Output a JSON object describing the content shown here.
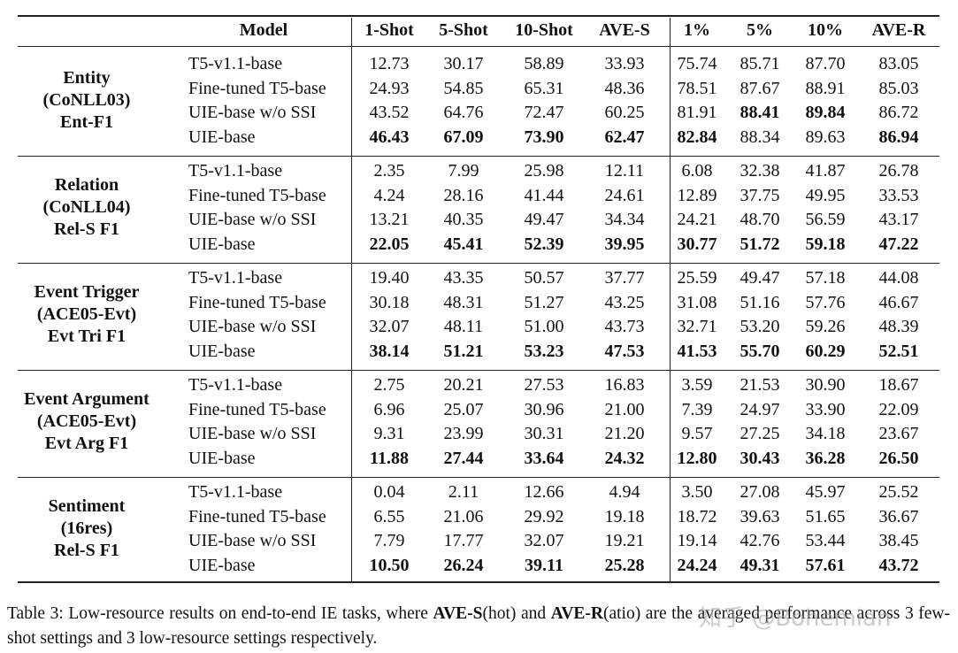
{
  "table": {
    "header": [
      "Model",
      "1-Shot",
      "5-Shot",
      "10-Shot",
      "AVE-S",
      "1%",
      "5%",
      "10%",
      "AVE-R"
    ],
    "groups": [
      {
        "label": [
          "Entity",
          "(CoNLL03)",
          "Ent-F1"
        ],
        "rows": [
          {
            "model": "T5-v1.1-base",
            "values": [
              "12.73",
              "30.17",
              "58.89",
              "33.93",
              "75.74",
              "85.71",
              "87.70",
              "83.05"
            ]
          },
          {
            "model": "Fine-tuned T5-base",
            "values": [
              "24.93",
              "54.85",
              "65.31",
              "48.36",
              "78.51",
              "87.67",
              "88.91",
              "85.03"
            ]
          },
          {
            "model": "UIE-base w/o SSI",
            "values": [
              "43.52",
              "64.76",
              "72.47",
              "60.25",
              "81.91",
              "88.41",
              "89.84",
              "86.72"
            ],
            "bold": [
              5,
              6
            ]
          },
          {
            "model": "UIE-base",
            "values": [
              "46.43",
              "67.09",
              "73.90",
              "62.47",
              "82.84",
              "88.34",
              "89.63",
              "86.94"
            ],
            "bold": [
              0,
              1,
              2,
              3,
              4,
              7
            ]
          }
        ]
      },
      {
        "label": [
          "Relation",
          "(CoNLL04)",
          "Rel-S F1"
        ],
        "rows": [
          {
            "model": "T5-v1.1-base",
            "values": [
              "2.35",
              "7.99",
              "25.98",
              "12.11",
              "6.08",
              "32.38",
              "41.87",
              "26.78"
            ]
          },
          {
            "model": "Fine-tuned T5-base",
            "values": [
              "4.24",
              "28.16",
              "41.44",
              "24.61",
              "12.89",
              "37.75",
              "49.95",
              "33.53"
            ]
          },
          {
            "model": "UIE-base w/o SSI",
            "values": [
              "13.21",
              "40.35",
              "49.47",
              "34.34",
              "24.21",
              "48.70",
              "56.59",
              "43.17"
            ]
          },
          {
            "model": "UIE-base",
            "values": [
              "22.05",
              "45.41",
              "52.39",
              "39.95",
              "30.77",
              "51.72",
              "59.18",
              "47.22"
            ],
            "bold": [
              0,
              1,
              2,
              3,
              4,
              5,
              6,
              7
            ]
          }
        ]
      },
      {
        "label": [
          "Event Trigger",
          "(ACE05-Evt)",
          "Evt Tri F1"
        ],
        "rows": [
          {
            "model": "T5-v1.1-base",
            "values": [
              "19.40",
              "43.35",
              "50.57",
              "37.77",
              "25.59",
              "49.47",
              "57.18",
              "44.08"
            ]
          },
          {
            "model": "Fine-tuned T5-base",
            "values": [
              "30.18",
              "48.31",
              "51.27",
              "43.25",
              "31.08",
              "51.16",
              "57.76",
              "46.67"
            ]
          },
          {
            "model": "UIE-base w/o SSI",
            "values": [
              "32.07",
              "48.11",
              "51.00",
              "43.73",
              "32.71",
              "53.20",
              "59.26",
              "48.39"
            ]
          },
          {
            "model": "UIE-base",
            "values": [
              "38.14",
              "51.21",
              "53.23",
              "47.53",
              "41.53",
              "55.70",
              "60.29",
              "52.51"
            ],
            "bold": [
              0,
              1,
              2,
              3,
              4,
              5,
              6,
              7
            ]
          }
        ]
      },
      {
        "label": [
          "Event Argument",
          "(ACE05-Evt)",
          "Evt Arg F1"
        ],
        "rows": [
          {
            "model": "T5-v1.1-base",
            "values": [
              "2.75",
              "20.21",
              "27.53",
              "16.83",
              "3.59",
              "21.53",
              "30.90",
              "18.67"
            ]
          },
          {
            "model": "Fine-tuned T5-base",
            "values": [
              "6.96",
              "25.07",
              "30.96",
              "21.00",
              "7.39",
              "24.97",
              "33.90",
              "22.09"
            ]
          },
          {
            "model": "UIE-base w/o SSI",
            "values": [
              "9.31",
              "23.99",
              "30.31",
              "21.20",
              "9.57",
              "27.25",
              "34.18",
              "23.67"
            ]
          },
          {
            "model": "UIE-base",
            "values": [
              "11.88",
              "27.44",
              "33.64",
              "24.32",
              "12.80",
              "30.43",
              "36.28",
              "26.50"
            ],
            "bold": [
              0,
              1,
              2,
              3,
              4,
              5,
              6,
              7
            ]
          }
        ]
      },
      {
        "label": [
          "Sentiment",
          "(16res)",
          "Rel-S F1"
        ],
        "rows": [
          {
            "model": "T5-v1.1-base",
            "values": [
              "0.04",
              "2.11",
              "12.66",
              "4.94",
              "3.50",
              "27.08",
              "45.97",
              "25.52"
            ]
          },
          {
            "model": "Fine-tuned T5-base",
            "values": [
              "6.55",
              "21.06",
              "29.92",
              "19.18",
              "18.72",
              "39.63",
              "51.65",
              "36.67"
            ]
          },
          {
            "model": "UIE-base w/o SSI",
            "values": [
              "7.79",
              "17.77",
              "32.07",
              "19.21",
              "19.14",
              "42.76",
              "53.44",
              "38.45"
            ]
          },
          {
            "model": "UIE-base",
            "values": [
              "10.50",
              "26.24",
              "39.11",
              "25.28",
              "24.24",
              "49.31",
              "57.61",
              "43.72"
            ],
            "bold": [
              0,
              1,
              2,
              3,
              4,
              5,
              6,
              7
            ]
          }
        ]
      }
    ]
  },
  "caption": [
    {
      "text": "Table 3: Low-resource results on end-to-end IE tasks, where "
    },
    {
      "text": "AVE-S",
      "bold": true
    },
    {
      "text": "(hot) and "
    },
    {
      "text": "AVE-R",
      "bold": true
    },
    {
      "text": "(atio) are the averaged performance across 3 few-shot settings and 3 low-resource settings respectively."
    }
  ],
  "watermark": "知乎 @Bohemian"
}
